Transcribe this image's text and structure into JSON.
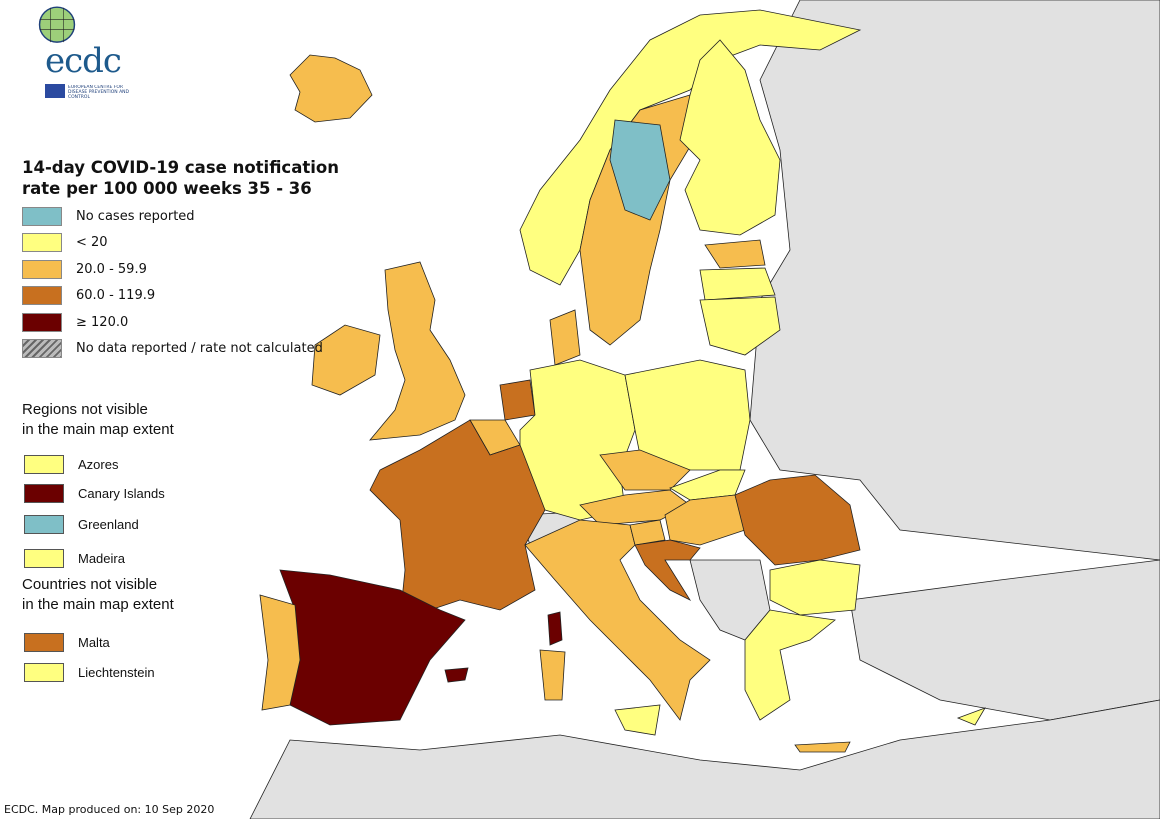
{
  "logo": {
    "text": "ecdc",
    "subtitle": "EUROPEAN CENTRE FOR DISEASE PREVENTION AND CONTROL"
  },
  "legend": {
    "title_line1": "14-day COVID-19 case notification",
    "title_line2": "rate per 100 000 weeks 35 - 36",
    "items": [
      {
        "key": "none",
        "label": "No cases reported",
        "color": "#7fbfc7"
      },
      {
        "key": "lt20",
        "label": "< 20",
        "color": "#ffff80"
      },
      {
        "key": "c20",
        "label": "20.0 - 59.9",
        "color": "#f6bd4e"
      },
      {
        "key": "c60",
        "label": "60.0 - 119.9",
        "color": "#c8701f"
      },
      {
        "key": "c120",
        "label": "≥ 120.0",
        "color": "#6b0000"
      },
      {
        "key": "nodata",
        "label": "No data reported / rate not calculated",
        "color": "hatched"
      }
    ]
  },
  "regions_not_visible": {
    "title_line1": "Regions not visible",
    "title_line2": "in the main map extent",
    "items": [
      {
        "label": "Azores",
        "key": "lt20"
      },
      {
        "label": "Canary Islands",
        "key": "c120"
      },
      {
        "label": "Greenland",
        "key": "none"
      },
      {
        "label": "Madeira",
        "key": "lt20"
      }
    ]
  },
  "countries_not_visible": {
    "title_line1": "Countries not visible",
    "title_line2": "in the main map extent",
    "items": [
      {
        "label": "Malta",
        "key": "c60"
      },
      {
        "label": "Liechtenstein",
        "key": "lt20"
      }
    ]
  },
  "map": {
    "sea_color": "#ffffff",
    "non_eu_land_color": "#e1e1e1",
    "countries": [
      {
        "name": "iceland",
        "key": "c20"
      },
      {
        "name": "norway",
        "key": "lt20"
      },
      {
        "name": "sweden",
        "key": "c20"
      },
      {
        "name": "finland",
        "key": "lt20"
      },
      {
        "name": "estonia",
        "key": "c20"
      },
      {
        "name": "latvia",
        "key": "lt20"
      },
      {
        "name": "lithuania",
        "key": "lt20"
      },
      {
        "name": "ireland",
        "key": "c20"
      },
      {
        "name": "united-kingdom",
        "key": "c20"
      },
      {
        "name": "denmark",
        "key": "c20"
      },
      {
        "name": "netherlands",
        "key": "c60"
      },
      {
        "name": "belgium",
        "key": "c20"
      },
      {
        "name": "germany",
        "key": "lt20"
      },
      {
        "name": "poland",
        "key": "lt20"
      },
      {
        "name": "czechia",
        "key": "c20"
      },
      {
        "name": "austria",
        "key": "c20"
      },
      {
        "name": "france",
        "key": "c60"
      },
      {
        "name": "spain",
        "key": "c120"
      },
      {
        "name": "portugal",
        "key": "c20"
      },
      {
        "name": "italy",
        "key": "c20"
      },
      {
        "name": "slovakia",
        "key": "lt20"
      },
      {
        "name": "hungary",
        "key": "c20"
      },
      {
        "name": "slovenia",
        "key": "c20"
      },
      {
        "name": "croatia",
        "key": "c60"
      },
      {
        "name": "romania",
        "key": "c60"
      },
      {
        "name": "bulgaria",
        "key": "lt20"
      },
      {
        "name": "greece",
        "key": "lt20"
      },
      {
        "name": "cyprus",
        "key": "lt20"
      },
      {
        "name": "corsica",
        "key": "c120"
      },
      {
        "name": "sardinia",
        "key": "c20"
      },
      {
        "name": "sicily",
        "key": "lt20"
      },
      {
        "name": "balearic-islands",
        "key": "c120"
      },
      {
        "name": "crete",
        "key": "c20"
      }
    ]
  },
  "footer": "ECDC. Map produced on: 10 Sep 2020"
}
